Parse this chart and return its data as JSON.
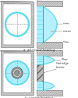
{
  "bg_color": "#ffffff",
  "cyan_color": "#66ddee",
  "light_cyan": "#aaeeff",
  "hatch_fc": "#cccccc",
  "hatch_line": "#999999",
  "dark_gray": "#666666",
  "mid_gray": "#999999",
  "label_a": "a  all-round heating",
  "label_b": "b  central heating",
  "text_vmax": "v_max",
  "text_vmean": "v_mean",
  "text_vmin": "v_min",
  "text_cartridge": "Cartridge\nheater",
  "text_pmax": "P_max",
  "fig_w": 1.0,
  "fig_h": 1.25,
  "dpi": 100
}
